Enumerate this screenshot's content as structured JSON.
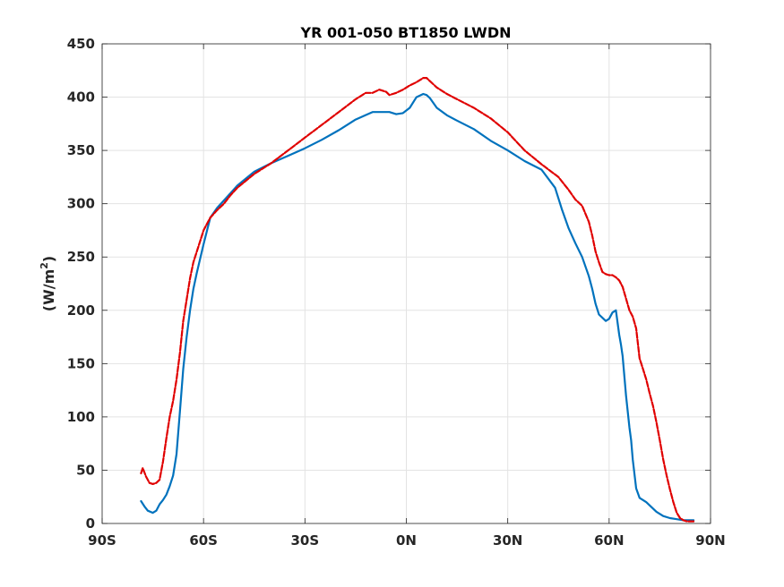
{
  "chart_data": {
    "type": "line",
    "title": "YR 001-050 BT1850 LWDN",
    "ylabel_text": "(W/m",
    "ylabel_sup": "2",
    "ylabel_close": ")",
    "xlabel": "",
    "xlim": [
      -90,
      90
    ],
    "ylim": [
      0,
      450
    ],
    "xticks": [
      -90,
      -60,
      -30,
      0,
      30,
      60,
      90
    ],
    "xtick_labels": [
      "90S",
      "60S",
      "30S",
      "0N",
      "30N",
      "60N",
      "90N"
    ],
    "yticks": [
      0,
      50,
      100,
      150,
      200,
      250,
      300,
      350,
      400,
      450
    ],
    "ytick_labels": [
      "0",
      "50",
      "100",
      "150",
      "200",
      "250",
      "300",
      "350",
      "400",
      "450"
    ],
    "grid": true,
    "series": [
      {
        "color": "#0072BD",
        "style": "solid",
        "x": [
          -78.5,
          -77.5,
          -76.5,
          -75,
          -74,
          -73,
          -72,
          -71,
          -70,
          -69,
          -68,
          -67,
          -66,
          -65,
          -64,
          -63,
          -62,
          -60,
          -58,
          -56,
          -54,
          -52,
          -50,
          -45,
          -40,
          -35,
          -30,
          -25,
          -20,
          -15,
          -10,
          -8,
          -5,
          -3,
          -1,
          1,
          3,
          5,
          6,
          7,
          9,
          12,
          15,
          20,
          25,
          30,
          35,
          40,
          44,
          46,
          48,
          50,
          52,
          54,
          55,
          56,
          57,
          58,
          59,
          60,
          61,
          62,
          63,
          63.5,
          64,
          65,
          66,
          66.5,
          67,
          68,
          69,
          70,
          71,
          72,
          74,
          76,
          78,
          80,
          82,
          84,
          85
        ],
        "values": [
          21,
          16,
          12,
          10,
          12,
          18,
          22,
          27,
          35,
          45,
          65,
          105,
          145,
          175,
          200,
          220,
          235,
          262,
          287,
          296,
          303,
          310,
          317,
          330,
          338,
          345,
          352,
          360,
          369,
          379,
          386,
          386,
          386,
          384,
          385,
          390,
          400,
          403,
          402,
          399,
          390,
          383,
          378,
          370,
          359,
          350,
          340,
          332,
          315,
          295,
          277,
          263,
          250,
          232,
          220,
          206,
          196,
          193,
          190,
          192,
          198,
          200,
          177,
          168,
          157,
          120,
          90,
          78,
          60,
          33,
          24,
          22,
          20,
          17,
          11,
          7,
          5,
          4,
          3,
          3,
          3
        ]
      },
      {
        "color": "#E00000",
        "style": "dashed",
        "x": [
          -78.5,
          -78,
          -77,
          -76,
          -75,
          -74,
          -73,
          -72,
          -71,
          -70,
          -69,
          -68,
          -67,
          -66,
          -65,
          -64,
          -63,
          -62,
          -61,
          -60,
          -58,
          -56,
          -54,
          -52,
          -50,
          -45,
          -40,
          -35,
          -30,
          -25,
          -20,
          -15,
          -12,
          -10,
          -8,
          -6,
          -5,
          -3,
          -1,
          1,
          3,
          5,
          6,
          7,
          9,
          12,
          15,
          20,
          25,
          30,
          35,
          40,
          45,
          48,
          50,
          52,
          54,
          55,
          56,
          57,
          58,
          59,
          60,
          61,
          62,
          63,
          64,
          65,
          66,
          67,
          68,
          69,
          70,
          71,
          72,
          73,
          74,
          75,
          76,
          77,
          78,
          79,
          80,
          81,
          82,
          83,
          84,
          85
        ],
        "values": [
          47,
          52,
          44,
          38,
          37,
          38,
          41,
          58,
          80,
          100,
          115,
          135,
          160,
          190,
          210,
          230,
          245,
          255,
          265,
          275,
          287,
          294,
          300,
          308,
          315,
          328,
          338,
          350,
          362,
          374,
          386,
          398,
          404,
          404,
          407,
          405,
          402,
          404,
          407,
          411,
          414,
          418,
          418,
          415,
          409,
          403,
          398,
          390,
          380,
          367,
          350,
          337,
          325,
          313,
          304,
          298,
          283,
          270,
          255,
          245,
          236,
          234,
          233,
          233,
          231,
          228,
          222,
          211,
          200,
          194,
          183,
          155,
          145,
          135,
          122,
          110,
          95,
          78,
          60,
          45,
          32,
          20,
          10,
          5,
          3,
          2,
          2,
          2
        ]
      }
    ]
  }
}
